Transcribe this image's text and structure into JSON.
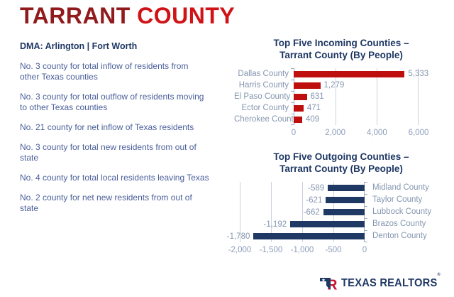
{
  "header": {
    "title_word1": "TARRANT",
    "title_word2": "COUNTY"
  },
  "left": {
    "dma": "DMA: Arlington | Fort Worth",
    "facts": [
      "No. 3 county for total inflow of residents from other Texas counties",
      "No. 3 county for total outflow of residents moving to other Texas counties",
      "No. 21 county for net inflow of Texas residents",
      "No. 3 county for total new residents from out of state",
      "No. 4 county for total local residents leaving Texas",
      "No. 2 county for net new residents from out of state"
    ]
  },
  "chart_data": [
    {
      "id": "incoming",
      "type": "bar",
      "orientation": "horizontal",
      "title": "Top Five Incoming Counties – Tarrant County (By People)",
      "title_line1": "Top Five Incoming Counties –",
      "title_line2": "Tarrant County (By People)",
      "categories": [
        "Dallas County",
        "Harris County",
        "El Paso County",
        "Ector County",
        "Cherokee County"
      ],
      "values": [
        5333,
        1279,
        631,
        471,
        409
      ],
      "value_labels": [
        "5,333",
        "1,279",
        "631",
        "471",
        "409"
      ],
      "xlim": [
        0,
        6000
      ],
      "x_ticks": [
        {
          "value": 0,
          "label": "0"
        },
        {
          "value": 2000,
          "label": "2,000"
        },
        {
          "value": 4000,
          "label": "4,000"
        },
        {
          "value": 6000,
          "label": "6,000"
        }
      ],
      "direction": "right",
      "grid": true,
      "legend": false,
      "bar_color": "#BE0E0E"
    },
    {
      "id": "outgoing",
      "type": "bar",
      "orientation": "horizontal",
      "title": "Top Five Outgoing Counties – Tarrant County (By People)",
      "title_line1": "Top Five Outgoing Counties –",
      "title_line2": "Tarrant County (By People)",
      "categories": [
        "Midland County",
        "Taylor County",
        "Lubbock County",
        "Brazos County",
        "Denton County"
      ],
      "values": [
        -589,
        -621,
        -662,
        -1192,
        -1780
      ],
      "value_labels": [
        "-589",
        "-621",
        "-662",
        "-1,192",
        "-1,780"
      ],
      "xlim": [
        -2000,
        0
      ],
      "x_ticks": [
        {
          "value": -2000,
          "label": "-2,000"
        },
        {
          "value": -1500,
          "label": "-1,500"
        },
        {
          "value": -1000,
          "label": "-1,000"
        },
        {
          "value": -500,
          "label": "-500"
        },
        {
          "value": 0,
          "label": "0"
        }
      ],
      "direction": "left",
      "grid": true,
      "legend": false,
      "bar_color": "#1F3864"
    }
  ],
  "logo": {
    "text": "TEXAS REALTORS",
    "reg": "®"
  },
  "colors": {
    "title_dark_red": "#911A1D",
    "title_bright_red": "#D01317",
    "navy": "#1F3864",
    "body_blue": "#4A5F99",
    "label_slate": "#8496B0",
    "incoming_bar": "#BE0E0E",
    "outgoing_bar": "#1F3864",
    "logo_red": "#C8102E"
  }
}
